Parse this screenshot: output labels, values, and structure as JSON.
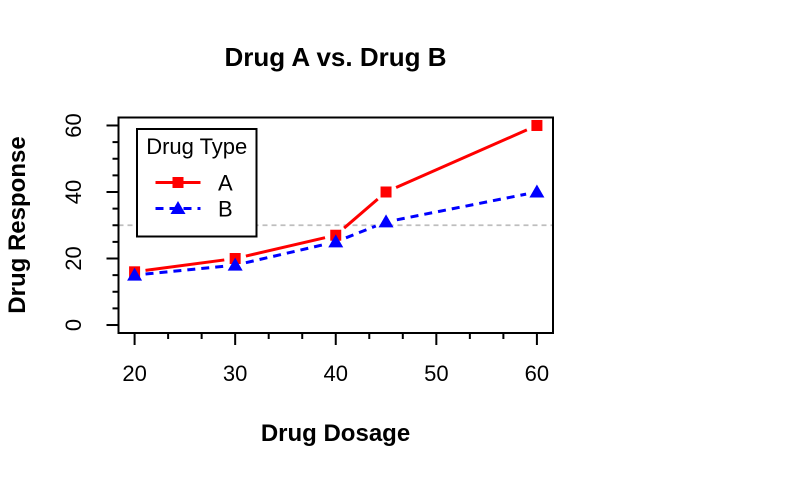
{
  "window": {
    "background": "#FFFFFF"
  },
  "chart_data": {
    "type": "line",
    "title": "Drug A vs. Drug B",
    "xlabel": "Drug Dosage",
    "ylabel": "Drug Response",
    "x": [
      20,
      30,
      40,
      45,
      60
    ],
    "series": [
      {
        "name": "A",
        "values": [
          16,
          20,
          27,
          40,
          60
        ],
        "color": "#FF0000",
        "marker": "square",
        "linestyle": "solid"
      },
      {
        "name": "B",
        "values": [
          15,
          18,
          25,
          31,
          40
        ],
        "color": "#0000FF",
        "marker": "triangle",
        "linestyle": "dashed"
      }
    ],
    "xlim": [
      20,
      60
    ],
    "ylim": [
      0,
      60
    ],
    "x_major_ticks": [
      20,
      30,
      40,
      50,
      60
    ],
    "y_major_ticks": [
      0,
      20,
      40,
      60
    ],
    "x_minor_divisions": 3,
    "y_minor_divisions": 4,
    "reference_line": {
      "y": 30,
      "color": "#BEBEBE",
      "linestyle": "dashed"
    },
    "legend": {
      "title": "Drug Type",
      "position": "topleft"
    },
    "grid": false,
    "line_type": "points-and-lines",
    "axis_color": "#000000",
    "text_color": "#000000"
  }
}
